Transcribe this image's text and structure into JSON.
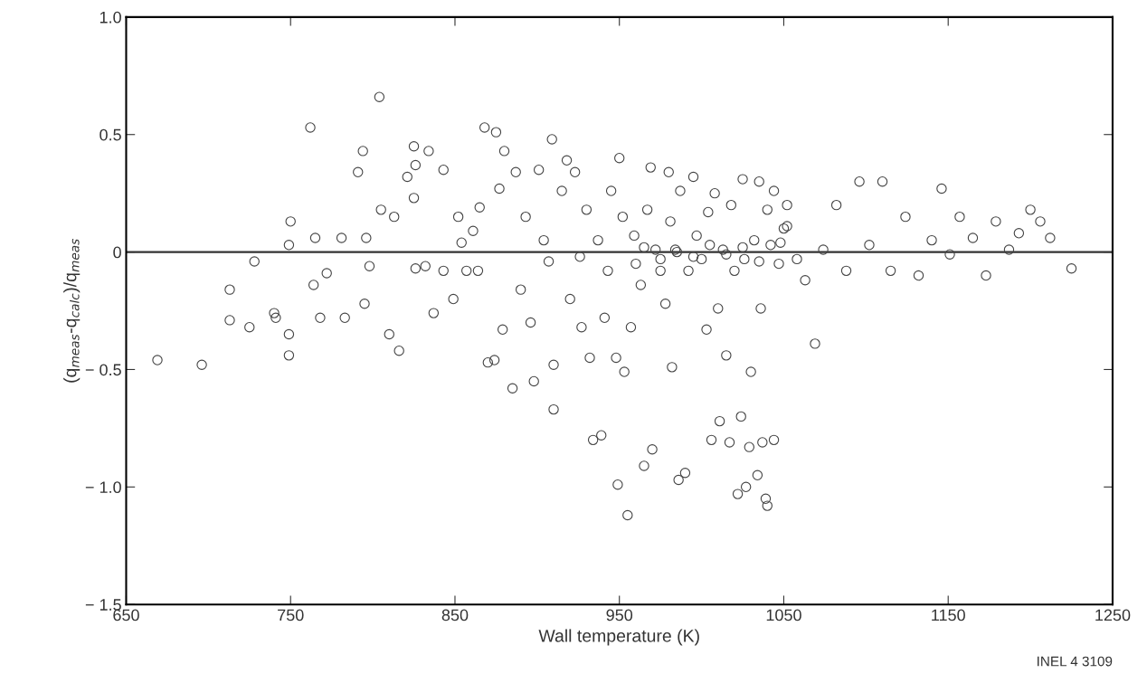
{
  "chart_data": {
    "type": "scatter",
    "xlabel": "Wall temperature (K)",
    "ylabel": "(q$_{meas}$-q$_{calc}$)/q$_{meas}$",
    "xlim": [
      650,
      1250
    ],
    "ylim": [
      -1.5,
      1.0
    ],
    "xticks": [
      650,
      750,
      850,
      950,
      1050,
      1150,
      1250
    ],
    "yticks": [
      {
        "value": -1.5,
        "label": "− 1.5"
      },
      {
        "value": -1.0,
        "label": "− 1.0"
      },
      {
        "value": -0.5,
        "label": "− 0.5"
      },
      {
        "value": 0,
        "label": "0"
      },
      {
        "value": 0.5,
        "label": "0.5"
      },
      {
        "value": 1.0,
        "label": "1.0"
      }
    ],
    "grid": false,
    "legend": false,
    "marker": "circle",
    "ref_lines": [
      {
        "axis": "y",
        "value": 0,
        "color": "#333333"
      }
    ],
    "annotations": [
      "INEL 4 3109"
    ],
    "series": [
      {
        "color": "#444444",
        "x": [
          669,
          696,
          713,
          713,
          728,
          725,
          740,
          741,
          749,
          750,
          749,
          749,
          762,
          764,
          765,
          768,
          772,
          781,
          783,
          791,
          794,
          795,
          796,
          798,
          804,
          805,
          810,
          813,
          816,
          821,
          825,
          826,
          825,
          826,
          832,
          834,
          837,
          843,
          843,
          849,
          852,
          854,
          857,
          861,
          864,
          865,
          868,
          870,
          874,
          875,
          877,
          879,
          880,
          885,
          887,
          890,
          893,
          896,
          898,
          901,
          904,
          907,
          909,
          910,
          910,
          915,
          918,
          920,
          923,
          926,
          927,
          930,
          932,
          934,
          937,
          939,
          941,
          943,
          945,
          948,
          949,
          950,
          952,
          953,
          955,
          957,
          959,
          960,
          963,
          965,
          967,
          969,
          970,
          972,
          975,
          978,
          980,
          981,
          982,
          984,
          986,
          987,
          990,
          992,
          995,
          997,
          1000,
          1003,
          1004,
          1006,
          1008,
          1010,
          1011,
          1013,
          1015,
          1017,
          1018,
          1020,
          1022,
          1024,
          1025,
          1026,
          1027,
          1029,
          1030,
          1032,
          1034,
          1035,
          1036,
          1037,
          1039,
          1040,
          1040,
          1042,
          1044,
          1044,
          1047,
          1069,
          1058,
          1052,
          1063,
          1074,
          1082,
          1088,
          1096,
          1102,
          1110,
          1115,
          1124,
          1132,
          1140,
          1146,
          1151,
          1157,
          1165,
          1173,
          1179,
          1187,
          1193,
          1200,
          1206,
          1212,
          1225,
          965,
          975,
          985,
          995,
          1005,
          1015,
          1025,
          1035,
          1048,
          1050,
          1052
        ],
        "values": [
          -0.46,
          -0.48,
          -0.16,
          -0.29,
          -0.04,
          -0.32,
          -0.26,
          -0.28,
          0.03,
          0.13,
          -0.35,
          -0.44,
          0.53,
          -0.14,
          0.06,
          -0.28,
          -0.09,
          0.06,
          -0.28,
          0.34,
          0.43,
          -0.22,
          0.06,
          -0.06,
          0.66,
          0.18,
          -0.35,
          0.15,
          -0.42,
          0.32,
          0.45,
          0.37,
          0.23,
          -0.07,
          -0.06,
          0.43,
          -0.26,
          0.35,
          -0.08,
          -0.2,
          0.15,
          0.04,
          -0.08,
          0.09,
          -0.08,
          0.19,
          0.53,
          -0.47,
          -0.46,
          0.51,
          0.27,
          -0.33,
          0.43,
          -0.58,
          0.34,
          -0.16,
          0.15,
          -0.3,
          -0.55,
          0.35,
          0.05,
          -0.04,
          0.48,
          -0.48,
          -0.67,
          0.26,
          0.39,
          -0.2,
          0.34,
          -0.02,
          -0.32,
          0.18,
          -0.45,
          -0.8,
          0.05,
          -0.78,
          -0.28,
          -0.08,
          0.26,
          -0.45,
          -0.99,
          0.4,
          0.15,
          -0.51,
          -1.12,
          -0.32,
          0.07,
          -0.05,
          -0.14,
          -0.91,
          0.18,
          0.36,
          -0.84,
          0.01,
          -0.08,
          -0.22,
          0.34,
          0.13,
          -0.49,
          0.01,
          -0.97,
          0.26,
          -0.94,
          -0.08,
          0.32,
          0.07,
          -0.03,
          -0.33,
          0.17,
          -0.8,
          0.25,
          -0.24,
          -0.72,
          0.01,
          -0.44,
          -0.81,
          0.2,
          -0.08,
          -1.03,
          -0.7,
          0.31,
          -0.03,
          -1.0,
          -0.83,
          -0.51,
          0.05,
          -0.95,
          0.3,
          -0.24,
          -0.81,
          -1.05,
          -1.08,
          0.18,
          0.03,
          -0.8,
          0.26,
          -0.05,
          -0.39,
          -0.03,
          0.11,
          -0.12,
          0.01,
          0.2,
          -0.08,
          0.3,
          0.03,
          0.3,
          -0.08,
          0.15,
          -0.1,
          0.05,
          0.27,
          -0.01,
          0.15,
          0.06,
          -0.1,
          0.13,
          0.01,
          0.08,
          0.18,
          0.13,
          0.06,
          -0.07,
          0.02,
          -0.03,
          0.0,
          -0.02,
          0.03,
          -0.01,
          0.02,
          -0.04,
          0.04,
          0.1,
          0.2
        ]
      }
    ]
  }
}
